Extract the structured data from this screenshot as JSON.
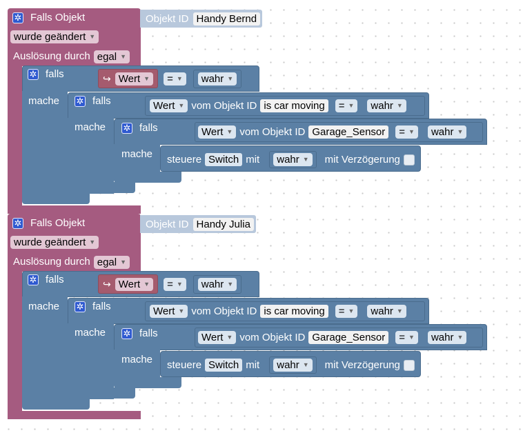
{
  "events": [
    {
      "title": "Falls Objekt",
      "object_label": "Objekt ID",
      "object_value": "Handy Bernd",
      "changed": "wurde geändert",
      "trigger_label": "Auslösung durch",
      "trigger_value": "egal",
      "if1": {
        "falls": "falls",
        "mache": "mache",
        "wert": "Wert",
        "op": "=",
        "val": "wahr"
      },
      "if2": {
        "falls": "falls",
        "mache": "mache",
        "wert": "Wert",
        "vom": "vom Objekt ID",
        "obj": "is car moving",
        "op": "=",
        "val": "wahr"
      },
      "if3": {
        "falls": "falls",
        "mache": "mache",
        "wert": "Wert",
        "vom": "vom Objekt ID",
        "obj": "Garage_Sensor",
        "op": "=",
        "val": "wahr"
      },
      "action": {
        "steuere": "steuere",
        "target": "Switch",
        "mit": "mit",
        "val": "wahr",
        "delay": "mit Verzögerung"
      }
    },
    {
      "title": "Falls Objekt",
      "object_label": "Objekt ID",
      "object_value": "Handy Julia",
      "changed": "wurde geändert",
      "trigger_label": "Auslösung durch",
      "trigger_value": "egal",
      "if1": {
        "falls": "falls",
        "mache": "mache",
        "wert": "Wert",
        "op": "=",
        "val": "wahr"
      },
      "if2": {
        "falls": "falls",
        "mache": "mache",
        "wert": "Wert",
        "vom": "vom Objekt ID",
        "obj": "is car moving",
        "op": "=",
        "val": "wahr"
      },
      "if3": {
        "falls": "falls",
        "mache": "mache",
        "wert": "Wert",
        "vom": "vom Objekt ID",
        "obj": "Garage_Sensor",
        "op": "=",
        "val": "wahr"
      },
      "action": {
        "steuere": "steuere",
        "target": "Switch",
        "mit": "mit",
        "val": "wahr",
        "delay": "mit Verzögerung"
      }
    }
  ],
  "colors": {
    "event_block": "#a55b80",
    "logic_block": "#5b80a5",
    "variable_block": "#a55b6e",
    "gear_icon": "#2f5ad0"
  },
  "icons": {
    "settings": "gear-icon",
    "variable": "return-arrow-icon",
    "dropdown": "caret-down-icon"
  }
}
